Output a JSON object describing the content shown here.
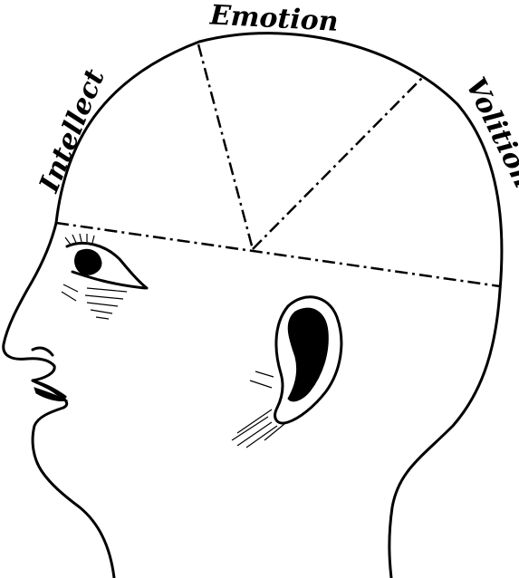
{
  "labels": {
    "emotion": "Emotion",
    "intellect": "Intellect",
    "volition": "Volition"
  },
  "colors": {
    "ink": "#000000",
    "paper": "#ffffff"
  }
}
